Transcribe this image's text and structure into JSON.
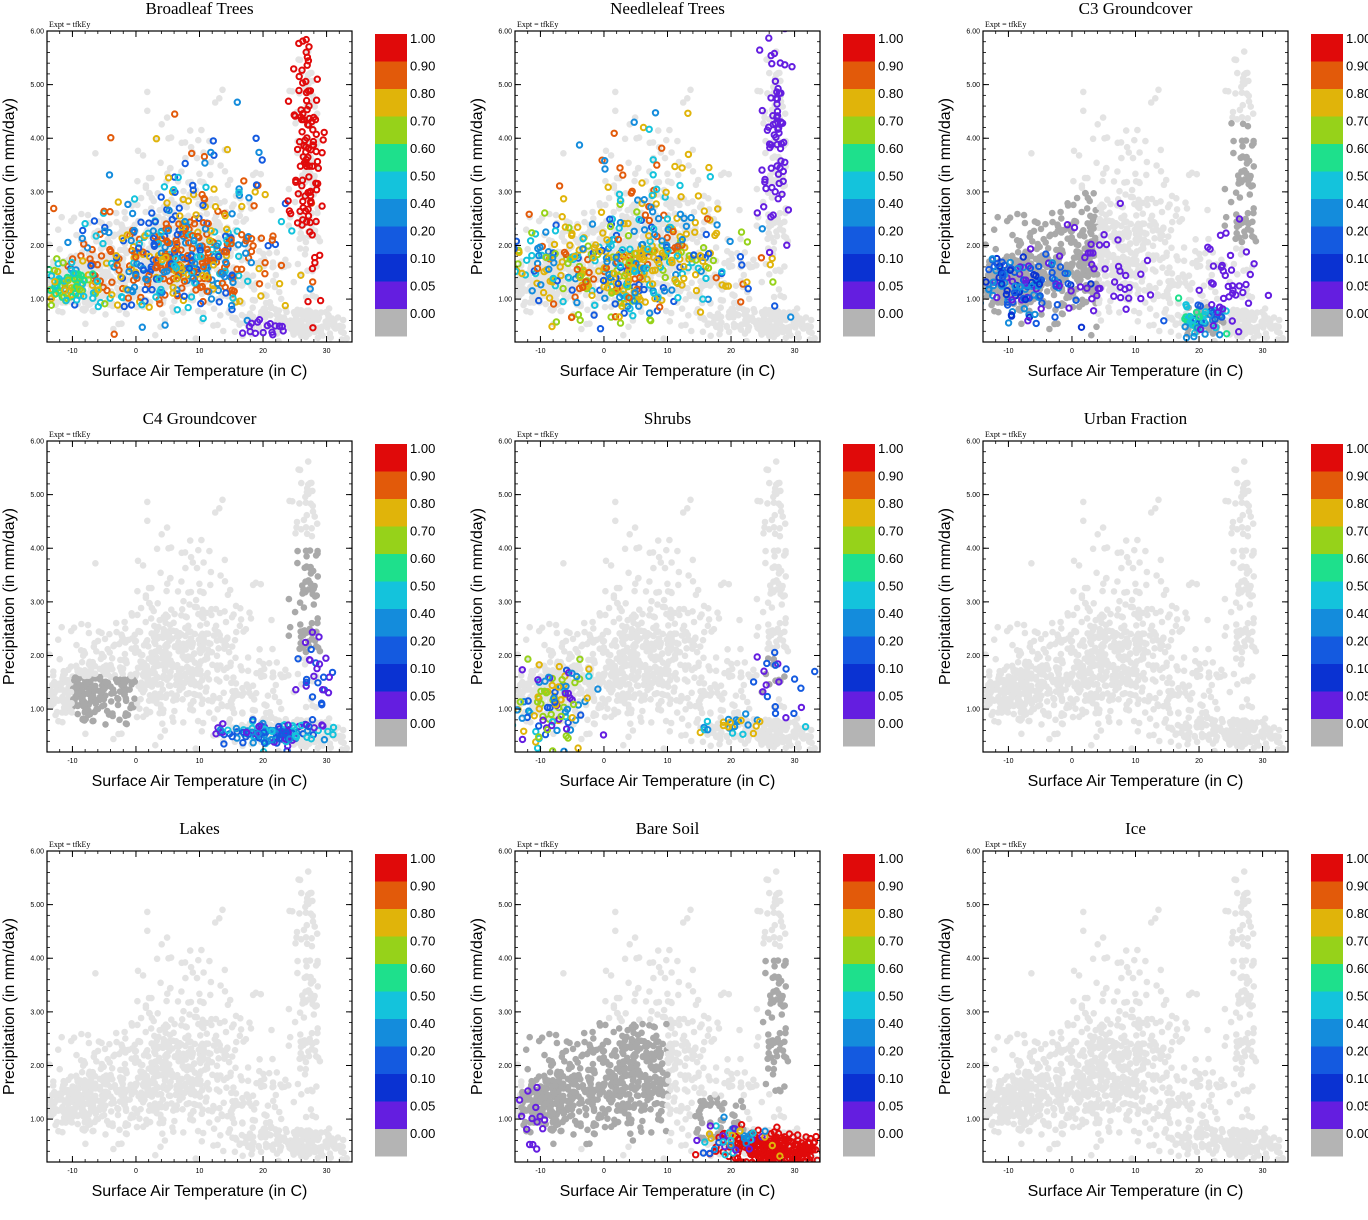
{
  "figure": {
    "experiment_label": "Expt = tfkEy",
    "xlabel": "Surface Air Temperature (in C)",
    "ylabel": "Precipitation (in mm/day)",
    "colorbar": {
      "labels": [
        "1.00",
        "0.90",
        "0.80",
        "0.70",
        "0.60",
        "0.50",
        "0.40",
        "0.20",
        "0.10",
        "0.05",
        "0.00"
      ],
      "colors": [
        "#e00a0a",
        "#e25a0a",
        "#e0b40a",
        "#96d21a",
        "#1ee08c",
        "#14c3dc",
        "#148cdc",
        "#145ae0",
        "#0a32d2",
        "#641ee0",
        "#b4b4b4"
      ]
    },
    "colors": {
      "light_gray": "#e3e3e3",
      "dark_gray": "#a9a9a9",
      "axes": "#000000"
    }
  },
  "chart_data": [
    {
      "type": "scatter",
      "title": "Broadleaf Trees",
      "xlim": [
        -14,
        34
      ],
      "ylim": [
        0.2,
        6.0
      ],
      "xticks": [
        "-10",
        "0",
        "10",
        "20",
        "30"
      ],
      "yticks": [
        "1.00",
        "2.00",
        "3.00",
        "4.00",
        "5.00",
        "6.00"
      ],
      "clusters": [
        {
          "xc": 6,
          "yc": 1.7,
          "sx": 8,
          "sy": 0.45,
          "n": 420,
          "colors": [
            "#e25a0a",
            "#e25a0a",
            "#e25a0a",
            "#e0b40a",
            "#148cdc",
            "#14c3dc",
            "#145ae0"
          ]
        },
        {
          "xc": -10,
          "yc": 1.25,
          "sx": 2.5,
          "sy": 0.2,
          "n": 90,
          "colors": [
            "#14c3dc",
            "#96d21a",
            "#1ee08c",
            "#e0b40a"
          ]
        },
        {
          "xc": 10,
          "yc": 2.7,
          "sx": 6,
          "sy": 0.8,
          "n": 80,
          "colors": [
            "#148cdc",
            "#14c3dc",
            "#e25a0a",
            "#e0b40a",
            "#145ae0"
          ]
        },
        {
          "xc": 27,
          "yc": 3.8,
          "sx": 1.3,
          "sy": 1.1,
          "n": 110,
          "colors": [
            "#e00a0a"
          ]
        },
        {
          "xc": 20,
          "yc": 0.45,
          "sx": 2,
          "sy": 0.12,
          "n": 16,
          "colors": [
            "#641ee0"
          ]
        }
      ]
    },
    {
      "type": "scatter",
      "title": "Needleleaf Trees",
      "xlim": [
        -14,
        34
      ],
      "ylim": [
        0.2,
        6.0
      ],
      "xticks": [
        "-10",
        "0",
        "10",
        "20",
        "30"
      ],
      "yticks": [
        "1.00",
        "2.00",
        "3.00",
        "4.00",
        "5.00",
        "6.00"
      ],
      "clusters": [
        {
          "xc": 3,
          "yc": 1.6,
          "sx": 9,
          "sy": 0.45,
          "n": 420,
          "colors": [
            "#e0b40a",
            "#e0b40a",
            "#e0b40a",
            "#148cdc",
            "#145ae0",
            "#96d21a",
            "#e25a0a",
            "#14c3dc"
          ]
        },
        {
          "xc": 8,
          "yc": 2.8,
          "sx": 6,
          "sy": 0.8,
          "n": 80,
          "colors": [
            "#148cdc",
            "#e25a0a",
            "#e0b40a",
            "#14c3dc"
          ]
        },
        {
          "xc": 27,
          "yc": 4.2,
          "sx": 1.2,
          "sy": 1.1,
          "n": 70,
          "colors": [
            "#641ee0"
          ]
        }
      ]
    },
    {
      "type": "scatter",
      "title": "C3 Groundcover",
      "xlim": [
        -14,
        34
      ],
      "ylim": [
        0.2,
        6.0
      ],
      "xticks": [
        "-10",
        "0",
        "10",
        "20",
        "30"
      ],
      "yticks": [
        "1.00",
        "2.00",
        "3.00",
        "4.00",
        "5.00",
        "6.00"
      ],
      "clusters": [
        {
          "xc": -8,
          "yc": 1.3,
          "sx": 3.5,
          "sy": 0.35,
          "n": 130,
          "colors": [
            "#145ae0",
            "#641ee0",
            "#148cdc",
            "#0a32d2"
          ]
        },
        {
          "xc": 20,
          "yc": 0.6,
          "sx": 2,
          "sy": 0.15,
          "n": 50,
          "colors": [
            "#148cdc",
            "#14c3dc",
            "#1ee08c",
            "#145ae0"
          ]
        },
        {
          "xc": 5,
          "yc": 1.5,
          "sx": 4,
          "sy": 0.5,
          "n": 40,
          "colors": [
            "#641ee0"
          ]
        },
        {
          "xc": 24,
          "yc": 1.4,
          "sx": 2,
          "sy": 0.5,
          "n": 40,
          "colors": [
            "#641ee0"
          ]
        }
      ]
    },
    {
      "type": "scatter",
      "title": "C4 Groundcover",
      "xlim": [
        -14,
        34
      ],
      "ylim": [
        0.2,
        6.0
      ],
      "xticks": [
        "-10",
        "0",
        "10",
        "20",
        "30"
      ],
      "yticks": [
        "1.00",
        "2.00",
        "3.00",
        "4.00",
        "5.00",
        "6.00"
      ],
      "clusters": [
        {
          "xc": 22,
          "yc": 0.55,
          "sx": 4,
          "sy": 0.12,
          "n": 120,
          "colors": [
            "#148cdc",
            "#145ae0",
            "#641ee0",
            "#14c3dc"
          ]
        },
        {
          "xc": 28,
          "yc": 1.6,
          "sx": 2,
          "sy": 0.5,
          "n": 30,
          "colors": [
            "#641ee0",
            "#145ae0"
          ]
        }
      ]
    },
    {
      "type": "scatter",
      "title": "Shrubs",
      "xlim": [
        -14,
        34
      ],
      "ylim": [
        0.2,
        6.0
      ],
      "xticks": [
        "-10",
        "0",
        "10",
        "20",
        "30"
      ],
      "yticks": [
        "1.00",
        "2.00",
        "3.00",
        "4.00",
        "5.00",
        "6.00"
      ],
      "clusters": [
        {
          "xc": -8,
          "yc": 1.1,
          "sx": 3,
          "sy": 0.4,
          "n": 110,
          "colors": [
            "#148cdc",
            "#14c3dc",
            "#e0b40a",
            "#641ee0",
            "#145ae0",
            "#96d21a"
          ]
        },
        {
          "xc": 20,
          "yc": 0.75,
          "sx": 3,
          "sy": 0.15,
          "n": 25,
          "colors": [
            "#e0b40a",
            "#14c3dc",
            "#148cdc"
          ]
        },
        {
          "xc": 27,
          "yc": 1.4,
          "sx": 2,
          "sy": 0.3,
          "n": 20,
          "colors": [
            "#641ee0",
            "#145ae0"
          ]
        }
      ]
    },
    {
      "type": "scatter",
      "title": "Urban Fraction",
      "xlim": [
        -14,
        34
      ],
      "ylim": [
        0.2,
        6.0
      ],
      "xticks": [
        "-10",
        "0",
        "10",
        "20",
        "30"
      ],
      "yticks": [
        "1.00",
        "2.00",
        "3.00",
        "4.00",
        "5.00",
        "6.00"
      ],
      "clusters": []
    },
    {
      "type": "scatter",
      "title": "Lakes",
      "xlim": [
        -14,
        34
      ],
      "ylim": [
        0.2,
        6.0
      ],
      "xticks": [
        "-10",
        "0",
        "10",
        "20",
        "30"
      ],
      "yticks": [
        "1.00",
        "2.00",
        "3.00",
        "4.00",
        "5.00",
        "6.00"
      ],
      "clusters": []
    },
    {
      "type": "scatter",
      "title": "Bare Soil",
      "xlim": [
        -14,
        34
      ],
      "ylim": [
        0.2,
        6.0
      ],
      "xticks": [
        "-10",
        "0",
        "10",
        "20",
        "30"
      ],
      "yticks": [
        "1.00",
        "2.00",
        "3.00",
        "4.00",
        "5.00",
        "6.00"
      ],
      "clusters": [
        {
          "xc": 27,
          "yc": 0.45,
          "sx": 4,
          "sy": 0.15,
          "n": 260,
          "colors": [
            "#e00a0a"
          ]
        },
        {
          "xc": 20,
          "yc": 0.6,
          "sx": 3,
          "sy": 0.15,
          "n": 40,
          "colors": [
            "#145ae0",
            "#14c3dc",
            "#e0b40a",
            "#148cdc",
            "#641ee0"
          ]
        },
        {
          "xc": -11,
          "yc": 0.9,
          "sx": 1.5,
          "sy": 0.3,
          "n": 15,
          "colors": [
            "#641ee0"
          ]
        }
      ]
    },
    {
      "type": "scatter",
      "title": "Ice",
      "xlim": [
        -14,
        34
      ],
      "ylim": [
        0.2,
        6.0
      ],
      "xticks": [
        "-10",
        "0",
        "10",
        "20",
        "30"
      ],
      "yticks": [
        "1.00",
        "2.00",
        "3.00",
        "4.00",
        "5.00",
        "6.00"
      ],
      "clusters": []
    }
  ]
}
